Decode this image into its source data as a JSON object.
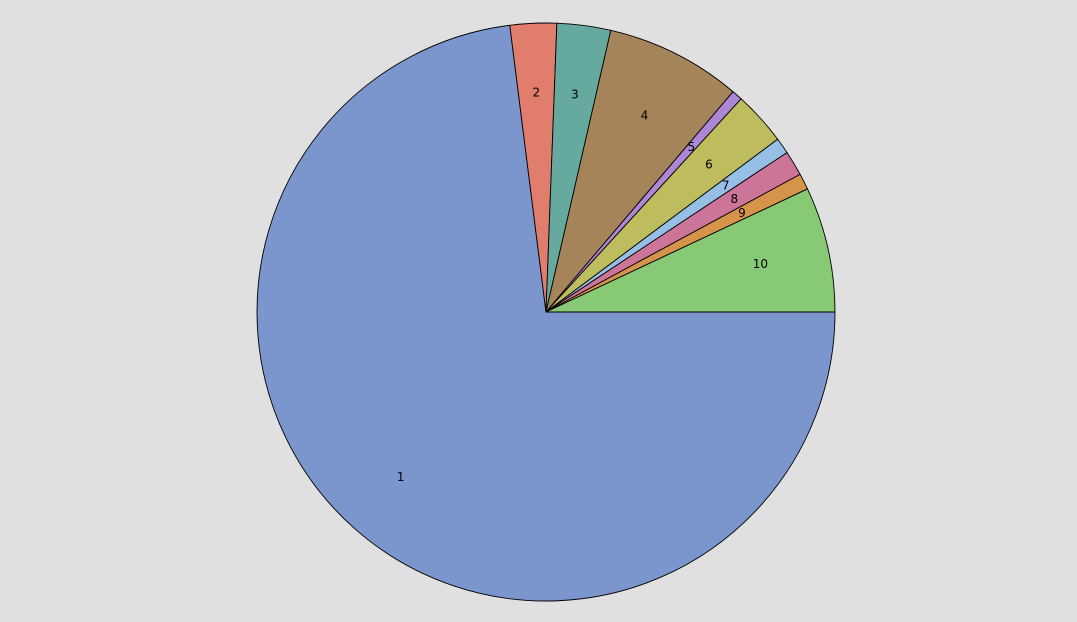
{
  "chart_data": {
    "type": "pie",
    "title": "",
    "start_angle_deg": 0,
    "direction": "clockwise",
    "legend": "none",
    "slices": [
      {
        "label": "1",
        "value": 73.0,
        "color": "#7b96cc"
      },
      {
        "label": "2",
        "value": 2.6,
        "color": "#e07d6c"
      },
      {
        "label": "3",
        "value": 3.0,
        "color": "#66a99f"
      },
      {
        "label": "4",
        "value": 7.6,
        "color": "#a6845a"
      },
      {
        "label": "5",
        "value": 0.6,
        "color": "#ad86d6"
      },
      {
        "label": "6",
        "value": 3.0,
        "color": "#bdbd5e"
      },
      {
        "label": "7",
        "value": 0.9,
        "color": "#96bfe6"
      },
      {
        "label": "8",
        "value": 1.4,
        "color": "#cc7599"
      },
      {
        "label": "9",
        "value": 0.9,
        "color": "#d6944a"
      },
      {
        "label": "10",
        "value": 7.0,
        "color": "#87c975"
      }
    ]
  }
}
